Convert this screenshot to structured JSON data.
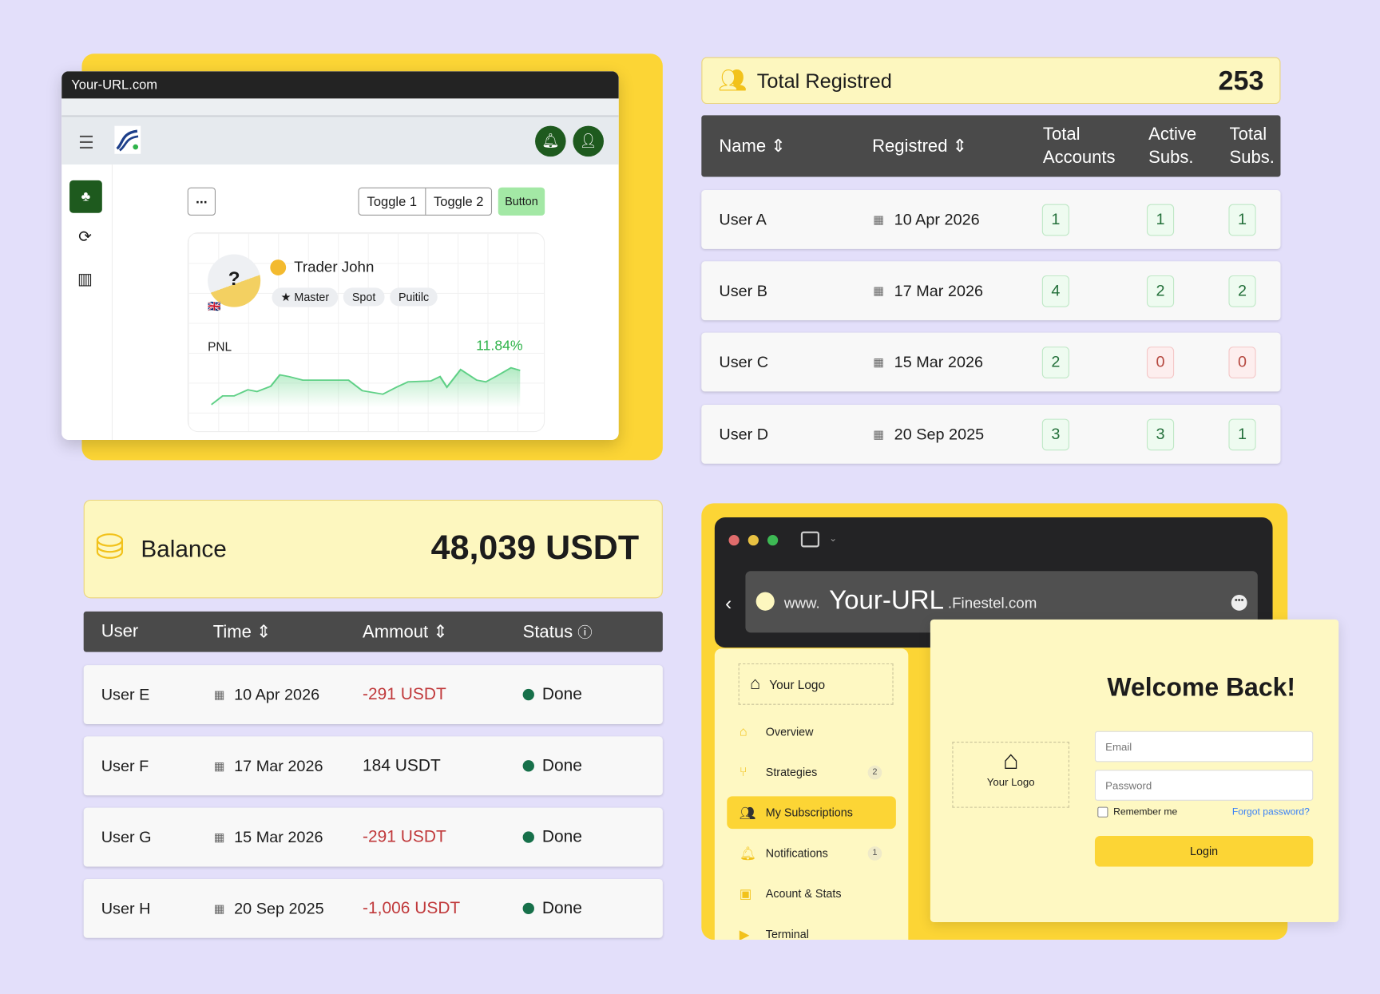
{
  "trader_window": {
    "url": "Your-URL.com",
    "more_label": "...",
    "toggles": [
      "Toggle 1",
      "Toggle 2"
    ],
    "button_label": "Button",
    "trader_name": "Trader John",
    "tags": [
      "Master",
      "Spot",
      "Puitilc"
    ],
    "pnl_label": "PNL",
    "pnl_value": "11.84%",
    "accent": "#1e5a1e"
  },
  "registered": {
    "title": "Total Registred",
    "total": "253",
    "columns": [
      "Name",
      "Registred",
      "Total Accounts",
      "Active Subs.",
      "Total Subs."
    ],
    "rows": [
      {
        "name": "User A",
        "date": "10 Apr 2026",
        "accounts": "1",
        "active": "1",
        "subs": "1"
      },
      {
        "name": "User B",
        "date": "17 Mar 2026",
        "accounts": "4",
        "active": "2",
        "subs": "2"
      },
      {
        "name": "User C",
        "date": "15 Mar 2026",
        "accounts": "2",
        "active": "0",
        "subs": "0"
      },
      {
        "name": "User D",
        "date": "20 Sep 2025",
        "accounts": "3",
        "active": "3",
        "subs": "1"
      }
    ]
  },
  "balance": {
    "title": "Balance",
    "amount": "48,039 USDT",
    "columns": [
      "User",
      "Time",
      "Ammout",
      "Status"
    ],
    "rows": [
      {
        "user": "User E",
        "date": "10 Apr 2026",
        "amount": "-291 USDT",
        "status": "Done"
      },
      {
        "user": "User F",
        "date": "17 Mar 2026",
        "amount": "184 USDT",
        "status": "Done"
      },
      {
        "user": "User G",
        "date": "15 Mar 2026",
        "amount": "-291 USDT",
        "status": "Done"
      },
      {
        "user": "User H",
        "date": "20 Sep 2025",
        "amount": "-1,006 USDT",
        "status": "Done"
      }
    ]
  },
  "browser": {
    "url_prefix": "www.",
    "url_main": "Your-URL",
    "url_suffix": ".Finestel.com",
    "sidebar": {
      "logo": "Your Logo",
      "items": [
        {
          "label": "Overview",
          "icon": "home-icon"
        },
        {
          "label": "Strategies",
          "icon": "branch-icon",
          "count": "2"
        },
        {
          "label": "My Subscriptions",
          "icon": "users-icon",
          "active": true
        },
        {
          "label": "Notifications",
          "icon": "bell-icon",
          "count": "1"
        },
        {
          "label": "Acount & Stats",
          "icon": "presentation-icon"
        },
        {
          "label": "Terminal",
          "icon": "terminal-icon"
        }
      ]
    },
    "login": {
      "title": "Welcome Back!",
      "logo": "Your Logo",
      "email_placeholder": "Email",
      "password_placeholder": "Password",
      "remember": "Remember me",
      "forgot": "Forgot password?",
      "login_label": "Login"
    }
  }
}
